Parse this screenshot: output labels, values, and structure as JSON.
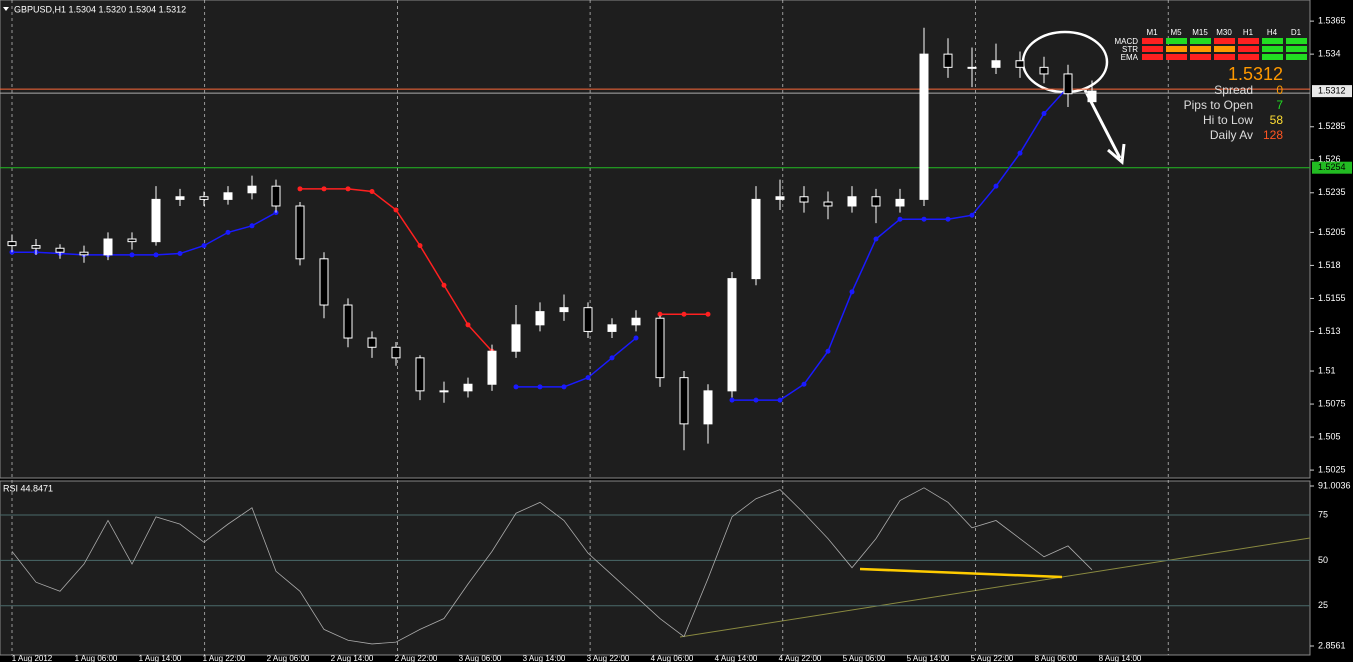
{
  "header": "GBPUSD,H1  1.5304 1.5320 1.5304 1.5312",
  "chart_data": {
    "type": "candlestick",
    "x_labels": [
      "1 Aug 2012",
      "1 Aug 06:00",
      "1 Aug 14:00",
      "1 Aug 22:00",
      "2 Aug 06:00",
      "2 Aug 14:00",
      "2 Aug 22:00",
      "3 Aug 06:00",
      "3 Aug 14:00",
      "3 Aug 22:00",
      "4 Aug 06:00",
      "4 Aug 14:00",
      "4 Aug 22:00",
      "5 Aug 06:00",
      "5 Aug 14:00",
      "5 Aug 22:00",
      "8 Aug 06:00",
      "8 Aug 14:00"
    ],
    "open": [
      1.5198,
      1.5195,
      1.5193,
      1.519,
      1.5188,
      1.52,
      1.5198,
      1.523,
      1.5232,
      1.523,
      1.5235,
      1.524,
      1.5225,
      1.5185,
      1.515,
      1.5125,
      1.5118,
      1.511,
      1.5085,
      1.5085,
      1.509,
      1.5115,
      1.5135,
      1.5145,
      1.5148,
      1.513,
      1.5135,
      1.514,
      1.5095,
      1.506,
      1.5085,
      1.517,
      1.523,
      1.5232,
      1.5228,
      1.5225,
      1.5232,
      1.5225,
      1.523,
      1.534,
      1.533,
      1.533,
      1.5335,
      1.533,
      1.5325,
      1.5304
    ],
    "high": [
      1.5203,
      1.52,
      1.5196,
      1.5195,
      1.5205,
      1.5205,
      1.524,
      1.5238,
      1.5236,
      1.524,
      1.5248,
      1.5245,
      1.5228,
      1.519,
      1.5155,
      1.513,
      1.5122,
      1.5112,
      1.5092,
      1.5095,
      1.512,
      1.515,
      1.5152,
      1.5158,
      1.5152,
      1.514,
      1.5146,
      1.5142,
      1.51,
      1.509,
      1.5175,
      1.524,
      1.5245,
      1.524,
      1.5236,
      1.524,
      1.5238,
      1.5238,
      1.536,
      1.5352,
      1.5345,
      1.5348,
      1.5342,
      1.5338,
      1.5332,
      1.532
    ],
    "low": [
      1.519,
      1.5188,
      1.5185,
      1.5182,
      1.5184,
      1.5192,
      1.5195,
      1.5225,
      1.5225,
      1.5226,
      1.523,
      1.522,
      1.518,
      1.514,
      1.5118,
      1.511,
      1.5104,
      1.5078,
      1.5076,
      1.508,
      1.5085,
      1.511,
      1.513,
      1.5138,
      1.5125,
      1.5125,
      1.513,
      1.5088,
      1.504,
      1.5045,
      1.508,
      1.5165,
      1.5222,
      1.522,
      1.5215,
      1.522,
      1.5212,
      1.522,
      1.5225,
      1.5322,
      1.5315,
      1.5325,
      1.5322,
      1.5318,
      1.53,
      1.5304
    ],
    "close": [
      1.5195,
      1.5193,
      1.519,
      1.5188,
      1.52,
      1.5198,
      1.523,
      1.5232,
      1.523,
      1.5235,
      1.524,
      1.5225,
      1.5185,
      1.515,
      1.5125,
      1.5118,
      1.511,
      1.5085,
      1.5085,
      1.509,
      1.5115,
      1.5135,
      1.5145,
      1.5148,
      1.513,
      1.5135,
      1.514,
      1.5095,
      1.506,
      1.5085,
      1.517,
      1.523,
      1.5232,
      1.5228,
      1.5225,
      1.5232,
      1.5225,
      1.523,
      1.534,
      1.533,
      1.533,
      1.5335,
      1.533,
      1.5325,
      1.531,
      1.5312
    ],
    "up_color": "#ffffff",
    "down_color": "#000000",
    "wick_color": "#ffffff",
    "series": [
      {
        "color": "#1a1aff",
        "values": [
          1.519,
          1.519,
          1.5189,
          1.5188,
          1.5188,
          1.5188,
          1.5188,
          1.5189,
          1.5195,
          1.5205,
          1.521,
          1.522,
          null,
          null,
          null,
          null,
          null,
          null,
          null,
          null,
          null,
          1.5088,
          1.5088,
          1.5088,
          1.5095,
          1.511,
          1.5125,
          null,
          null,
          null,
          1.5078,
          1.5078,
          1.5078,
          1.509,
          1.5115,
          1.516,
          1.52,
          1.5215,
          1.5215,
          1.5215,
          1.5218,
          1.524,
          1.5265,
          1.5295,
          1.5315,
          null
        ]
      },
      {
        "color": "#ff2020",
        "values": [
          null,
          null,
          null,
          null,
          null,
          null,
          null,
          null,
          null,
          null,
          null,
          null,
          1.5238,
          1.5238,
          1.5238,
          1.5236,
          1.5222,
          1.5195,
          1.5165,
          1.5135,
          1.5115,
          null,
          null,
          null,
          null,
          null,
          null,
          1.5143,
          1.5143,
          1.5143,
          null,
          null,
          null,
          null,
          null,
          null,
          null,
          null,
          null,
          null,
          null,
          null,
          null,
          null,
          null,
          null
        ]
      }
    ],
    "ylim": [
      1.5019,
      1.5381
    ],
    "yticks": [
      1.5365,
      1.534,
      1.5285,
      1.526,
      1.5235,
      1.5205,
      1.518,
      1.5155,
      1.513,
      1.51,
      1.5075,
      1.505,
      1.5025
    ],
    "bid_line": 1.5312,
    "level_line": 1.5254,
    "rsi": {
      "title": "RSI 44.8471",
      "color": "#aaaaaa",
      "values": [
        55,
        38,
        33,
        48,
        72,
        48,
        74,
        70,
        60,
        70,
        79,
        44,
        33,
        12,
        6,
        4,
        5,
        12,
        18,
        37,
        55,
        76,
        82,
        72,
        54,
        42,
        30,
        18,
        8,
        40,
        74,
        84,
        89,
        76,
        62,
        46,
        62,
        83,
        90,
        82,
        68,
        72,
        62,
        52,
        58,
        44.8471
      ],
      "ylim": [
        2.8561,
        91.0036
      ],
      "yticks": [
        91.0036,
        75,
        50,
        25,
        2.8561
      ]
    }
  },
  "panel": {
    "timeframes": [
      "M1",
      "M5",
      "M15",
      "M30",
      "H1",
      "H4",
      "D1"
    ],
    "rows": [
      {
        "name": "MACD",
        "colors": [
          "#ff2020",
          "#22dd22",
          "#22dd22",
          "#ff2020",
          "#ff2020",
          "#22dd22",
          "#22dd22"
        ]
      },
      {
        "name": "STR",
        "colors": [
          "#ff2020",
          "#ff9900",
          "#ff9900",
          "#ff9900",
          "#ff2020",
          "#22dd22",
          "#22dd22"
        ]
      },
      {
        "name": "EMA",
        "colors": [
          "#ff2020",
          "#ff2020",
          "#ff2020",
          "#ff2020",
          "#ff2020",
          "#22dd22",
          "#22dd22"
        ]
      }
    ],
    "price": "1.5312",
    "stats": [
      {
        "label": "Spread",
        "value": 0,
        "color": "#ff9900"
      },
      {
        "label": "Pips to Open",
        "value": 7,
        "color": "#22dd22"
      },
      {
        "label": "Hi to Low",
        "value": 58,
        "color": "#ffdd33"
      },
      {
        "label": "Daily Av",
        "value": 128,
        "color": "#ff5522"
      }
    ]
  }
}
